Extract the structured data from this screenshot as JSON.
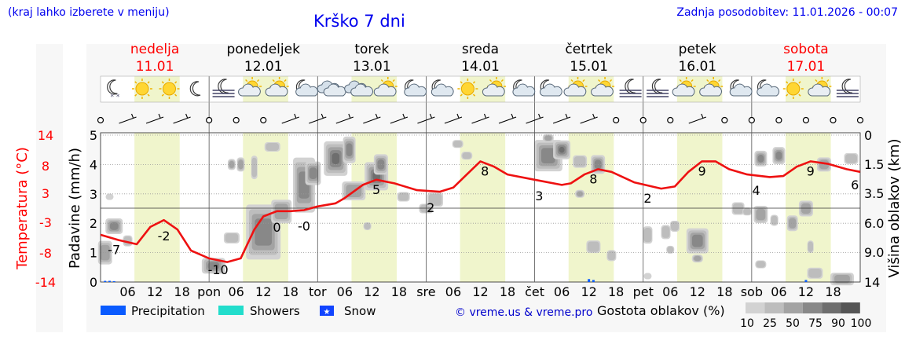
{
  "header": {
    "menu_hint": "(kraj lahko izberete v meniju)",
    "title": "Krško 7 dni",
    "updated": "Zadnja posodobitev: 11.01.2026 - 00:07"
  },
  "colors": {
    "title": "#0000ee",
    "sunday": "#ff0000",
    "temperature_line": "#ee1111",
    "day_band": "#f0f5cc",
    "precipitation": "#0a5bff",
    "showers": "#22ddcc",
    "snow": "#1144ff",
    "copyright": "#0000cc"
  },
  "days": [
    {
      "name": "nedelja",
      "date": "11.01",
      "sunday": true
    },
    {
      "name": "ponedeljek",
      "date": "12.01",
      "sunday": false
    },
    {
      "name": "torek",
      "date": "13.01",
      "sunday": false
    },
    {
      "name": "sreda",
      "date": "14.01",
      "sunday": false
    },
    {
      "name": "četrtek",
      "date": "15.01",
      "sunday": false
    },
    {
      "name": "petek",
      "date": "16.01",
      "sunday": false
    },
    {
      "name": "sobota",
      "date": "17.01",
      "sunday": true
    }
  ],
  "weather_icons": [
    "night-snow-icon",
    "sun-icon",
    "sun-icon",
    "moon-icon",
    "night-fog-icon",
    "sun-cloud-icon",
    "sun-cloud-icon",
    "night-cloud-icon",
    "cloud-icon",
    "cloud-icon",
    "sun-cloud-icon",
    "night-cloud-icon",
    "night-cloud-icon",
    "sun-icon",
    "sun-cloud-icon",
    "night-cloud-icon",
    "night-cloud-icon",
    "sun-cloud-icon",
    "sun-cloud-icon",
    "night-fog-icon",
    "night-fog-icon",
    "sun-cloud-icon",
    "sun-cloud-icon",
    "night-cloud-icon",
    "night-cloud-icon",
    "sun-icon",
    "sun-cloud-icon",
    "night-fog-icon"
  ],
  "wind_symbols": "barbs-and-calm-circles",
  "chart_data": {
    "type": "line",
    "title": "Krško 7 dni",
    "x_tick_labels": [
      "06",
      "12",
      "18",
      "pon",
      "06",
      "12",
      "18",
      "tor",
      "06",
      "12",
      "18",
      "sre",
      "06",
      "12",
      "18",
      "čet",
      "06",
      "12",
      "18",
      "pet",
      "06",
      "12",
      "18",
      "sob",
      "06",
      "12",
      "18"
    ],
    "x_hours": [
      6,
      12,
      18,
      24,
      30,
      36,
      42,
      48,
      54,
      60,
      66,
      72,
      78,
      84,
      90,
      96,
      102,
      108,
      114,
      120,
      126,
      132,
      138,
      144,
      150,
      156,
      162
    ],
    "x_range_hours": [
      0,
      168
    ],
    "left_axis_precip": {
      "label": "Padavine (mm/h)",
      "ticks": [
        0,
        1,
        2,
        3,
        4,
        5
      ],
      "range": [
        0,
        5
      ]
    },
    "left_axis_temp": {
      "label": "Temperatura (°C)",
      "ticks": [
        14,
        8,
        3,
        -3,
        -8,
        -14
      ],
      "range": [
        -14,
        14
      ]
    },
    "right_axis_cloud": {
      "label": "Višina oblakov (km)",
      "ticks": [
        "0",
        "1.5",
        "3.5",
        "6.0",
        "9.0",
        "14"
      ]
    },
    "temperature_series": {
      "name": "Temperatura (°C)",
      "points": [
        [
          0,
          -5
        ],
        [
          4,
          -6
        ],
        [
          8,
          -6.8
        ],
        [
          11,
          -3.5
        ],
        [
          14,
          -2.2
        ],
        [
          17,
          -4
        ],
        [
          20,
          -8
        ],
        [
          24,
          -9.5
        ],
        [
          28,
          -10.2
        ],
        [
          31,
          -9.5
        ],
        [
          34,
          -4
        ],
        [
          36,
          -1.5
        ],
        [
          39,
          -0.5
        ],
        [
          42,
          -0.5
        ],
        [
          45,
          -0.3
        ],
        [
          48,
          0.4
        ],
        [
          52,
          1
        ],
        [
          54,
          2
        ],
        [
          58,
          4.5
        ],
        [
          61,
          5.5
        ],
        [
          65,
          4.8
        ],
        [
          70,
          3.5
        ],
        [
          75,
          3.2
        ],
        [
          78,
          4
        ],
        [
          81,
          6.5
        ],
        [
          84,
          9
        ],
        [
          87,
          8
        ],
        [
          90,
          6.5
        ],
        [
          96,
          5.5
        ],
        [
          102,
          4.5
        ],
        [
          104,
          4.8
        ],
        [
          107,
          6.5
        ],
        [
          110,
          7.5
        ],
        [
          113,
          7
        ],
        [
          118,
          5
        ],
        [
          124,
          3.8
        ],
        [
          127,
          4.2
        ],
        [
          130,
          7
        ],
        [
          133,
          9
        ],
        [
          136,
          9
        ],
        [
          139,
          7.5
        ],
        [
          143,
          6.5
        ],
        [
          148,
          6
        ],
        [
          151,
          6.2
        ],
        [
          154,
          8
        ],
        [
          157,
          9
        ],
        [
          161,
          8.5
        ],
        [
          165,
          7.5
        ],
        [
          168,
          7
        ]
      ]
    },
    "temperature_labels": [
      {
        "hour": 3,
        "value": "-7"
      },
      {
        "hour": 14,
        "value": "-2"
      },
      {
        "hour": 26,
        "value": "-10"
      },
      {
        "hour": 39,
        "value": "0"
      },
      {
        "hour": 45,
        "value": "-0"
      },
      {
        "hour": 61,
        "value": "5"
      },
      {
        "hour": 73,
        "value": "2"
      },
      {
        "hour": 85,
        "value": "8"
      },
      {
        "hour": 97,
        "value": "3"
      },
      {
        "hour": 109,
        "value": "8"
      },
      {
        "hour": 121,
        "value": "2"
      },
      {
        "hour": 133,
        "value": "9"
      },
      {
        "hour": 145,
        "value": "4"
      },
      {
        "hour": 157,
        "value": "9"
      },
      {
        "hour": 167,
        "value": "6"
      }
    ],
    "precipitation_bars": [
      {
        "hour": 1,
        "mm_h": 0.04
      },
      {
        "hour": 2,
        "mm_h": 0.04
      },
      {
        "hour": 3,
        "mm_h": 0.03
      },
      {
        "hour": 108,
        "mm_h": 0.1
      },
      {
        "hour": 109,
        "mm_h": 0.07
      },
      {
        "hour": 156,
        "mm_h": 0.07
      }
    ]
  },
  "legend": {
    "precipitation": "Precipitation",
    "showers": "Showers",
    "snow": "Snow",
    "copyright": "© vreme.us & vreme.pro",
    "cloud_density_title": "Gostota oblakov (%)",
    "cloud_density_levels": [
      "10",
      "25",
      "50",
      "75",
      "90",
      "100"
    ],
    "cloud_density_colors": [
      "#d2d2d2",
      "#bdbdbd",
      "#a3a3a3",
      "#888888",
      "#6e6e6e",
      "#555555"
    ]
  }
}
